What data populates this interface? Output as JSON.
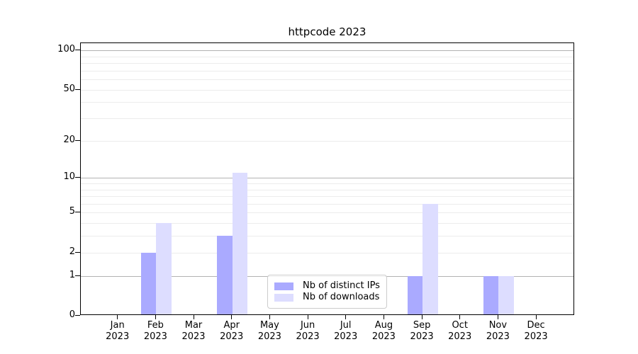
{
  "chart_data": {
    "type": "bar",
    "title": "httpcode 2023",
    "categories": [
      "Jan 2023",
      "Feb 2023",
      "Mar 2023",
      "Apr 2023",
      "May 2023",
      "Jun 2023",
      "Jul 2023",
      "Aug 2023",
      "Sep 2023",
      "Oct 2023",
      "Nov 2023",
      "Dec 2023"
    ],
    "series": [
      {
        "name": "Nb of distinct IPs",
        "color": "#aaaaff",
        "values": [
          0,
          2,
          0,
          3,
          0,
          0,
          0,
          0,
          1,
          0,
          1,
          0
        ]
      },
      {
        "name": "Nb of downloads",
        "color": "#ddddff",
        "values": [
          0,
          4,
          0,
          11,
          0,
          0,
          0,
          0,
          6,
          0,
          1,
          0
        ]
      }
    ],
    "yscale": "log1p",
    "ylim": [
      0,
      113
    ],
    "yticks": [
      0,
      1,
      2,
      5,
      10,
      20,
      50,
      100
    ],
    "major_gridline_values": [
      1,
      10,
      100
    ],
    "minor_gridline_values": [
      2,
      3,
      4,
      5,
      6,
      7,
      8,
      9,
      20,
      30,
      40,
      50,
      60,
      70,
      80,
      90
    ],
    "grid": true,
    "legend_position": "lower center",
    "colors": {
      "major_grid": "#b2b2b2",
      "minor_grid": "#ececec",
      "axis": "#000000",
      "background": "#ffffff"
    }
  }
}
